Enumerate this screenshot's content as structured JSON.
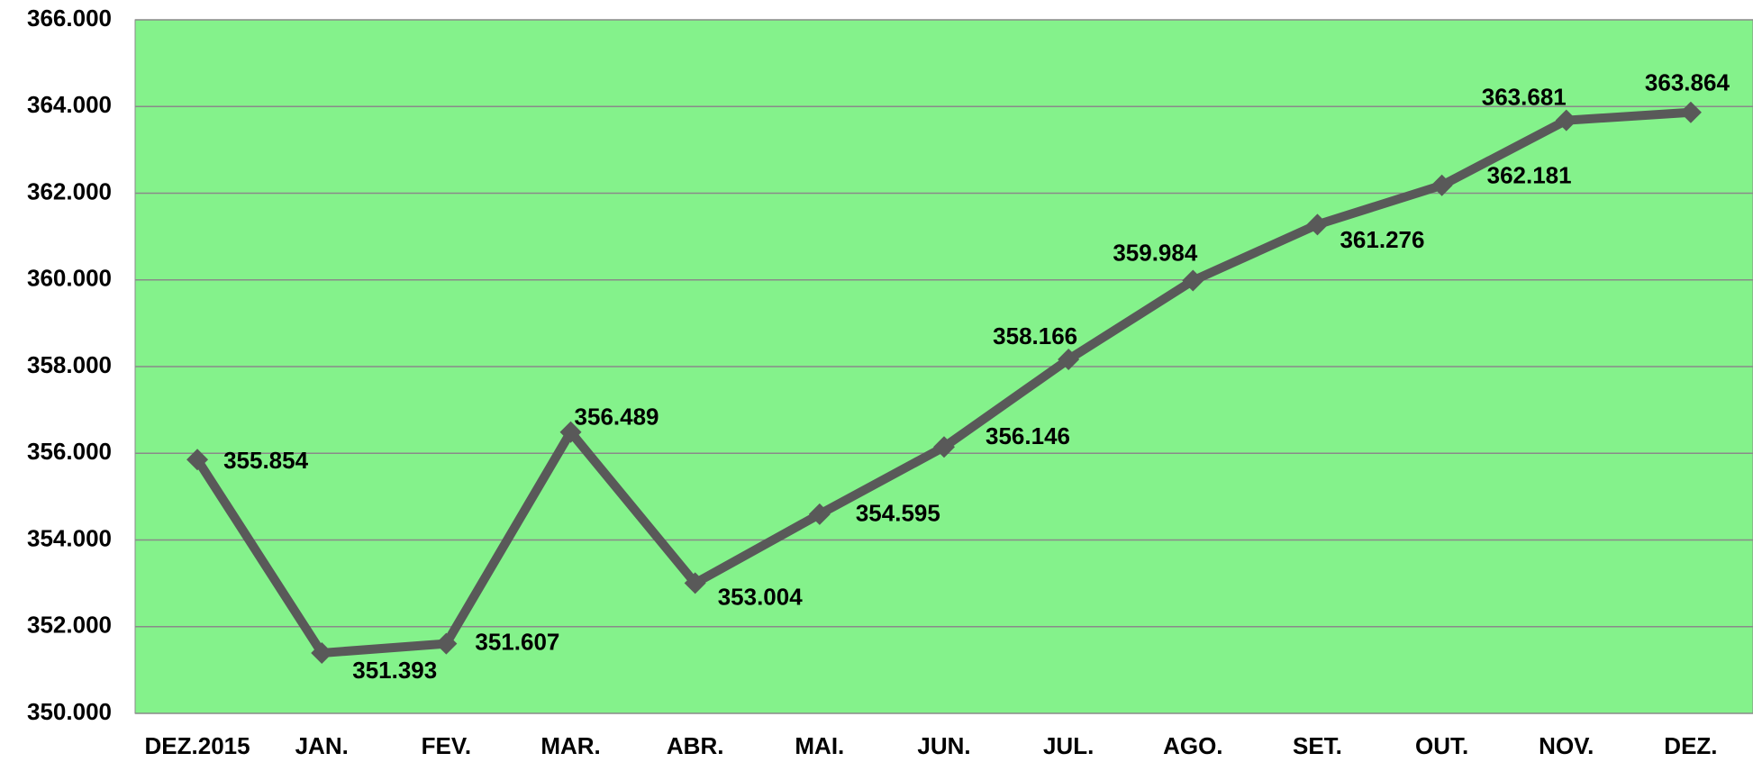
{
  "chart_data": {
    "type": "line",
    "categories": [
      "DEZ.2015",
      "JAN.",
      "FEV.",
      "MAR.",
      "ABR.",
      "MAI.",
      "JUN.",
      "JUL.",
      "AGO.",
      "SET.",
      "OUT.",
      "NOV.",
      "DEZ."
    ],
    "series": [
      {
        "color": "#595959",
        "values": [
          355854,
          351393,
          351607,
          356489,
          353004,
          354595,
          356146,
          358166,
          359984,
          361276,
          362181,
          363681,
          363864
        ],
        "value_labels": [
          "355.854",
          "351.393",
          "351.607",
          "356.489",
          "353.004",
          "354.595",
          "356.146",
          "358.166",
          "359.984",
          "361.276",
          "362.181",
          "363.681",
          "363.864"
        ]
      }
    ],
    "ylim": [
      350000,
      366000
    ],
    "yticks": [
      {
        "value": 350000,
        "label": "350.000"
      },
      {
        "value": 352000,
        "label": "352.000"
      },
      {
        "value": 354000,
        "label": "354.000"
      },
      {
        "value": 356000,
        "label": "356.000"
      },
      {
        "value": 358000,
        "label": "358.000"
      },
      {
        "value": 360000,
        "label": "360.000"
      },
      {
        "value": 362000,
        "label": "362.000"
      },
      {
        "value": 364000,
        "label": "364.000"
      },
      {
        "value": 366000,
        "label": "366.000"
      }
    ],
    "grid": true,
    "plot_background": "#84f28b"
  }
}
